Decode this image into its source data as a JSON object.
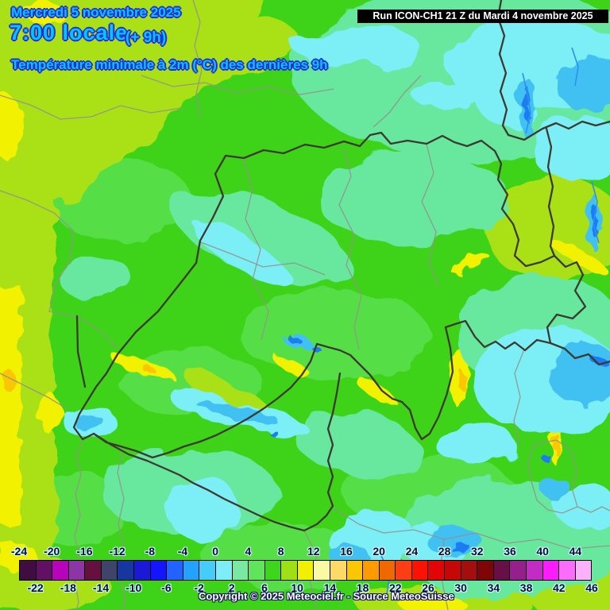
{
  "header": {
    "date_line": "Mercredi 5 novembre 2025",
    "time_line": "7:00 locale",
    "offset_label": "(+ 9h)",
    "subtitle": "Température minimale à 2m (°C) des dernières 9h",
    "text_color": "#00c8ff",
    "outline_color": "#2b2bd4"
  },
  "run_info": {
    "label": "Run ICON-CH1 21 Z du Mardi 4 novembre 2025",
    "bg_color": "#000000",
    "text_color": "#ffffff"
  },
  "footer": {
    "copyright": "Copyright © 2025 Meteociel.fr - Source MeteoSuisse"
  },
  "scale": {
    "unit": "°C",
    "min": -24,
    "max": 46,
    "step": 2,
    "colors": [
      "#400d42",
      "#611063",
      "#b803bd",
      "#8c36a5",
      "#661040",
      "#3f4569",
      "#16389e",
      "#1a1ad6",
      "#1414ff",
      "#2263ff",
      "#23a2ff",
      "#45ccf8",
      "#7deef8",
      "#79e9a2",
      "#60e45c",
      "#3cd61c",
      "#9fdf16",
      "#f0f000",
      "#fafaa5",
      "#fbda68",
      "#fbc703",
      "#fb9b00",
      "#f16800",
      "#fb3e13",
      "#fa1303",
      "#e20505",
      "#c40808",
      "#a30e0e",
      "#7e0606",
      "#671047",
      "#94208c",
      "#c22cc2",
      "#fa1cfa",
      "#fa6cfa",
      "#fbb1fb"
    ],
    "top_labels": [
      "-24",
      "-20",
      "-16",
      "-12",
      "-8",
      "-4",
      "0",
      "4",
      "8",
      "12",
      "16",
      "20",
      "24",
      "28",
      "32",
      "36",
      "40",
      "44"
    ],
    "bottom_labels": [
      "-22",
      "-18",
      "-14",
      "-10",
      "-6",
      "-2",
      "2",
      "6",
      "10",
      "14",
      "18",
      "22",
      "26",
      "30",
      "34",
      "38",
      "42",
      "46"
    ]
  },
  "map": {
    "palette": {
      "base": "#3ed318",
      "green_light": "#5ee257",
      "yellow_green": "#a9e112",
      "yellow": "#f2f200",
      "gold": "#fbc703",
      "mint": "#68e79e",
      "cyan": "#7ceef5",
      "sky": "#40c1f2",
      "blue": "#1f7df2",
      "border_country": "#3c3a30",
      "border_region": "#93938a",
      "river": "#2f8df0"
    }
  }
}
